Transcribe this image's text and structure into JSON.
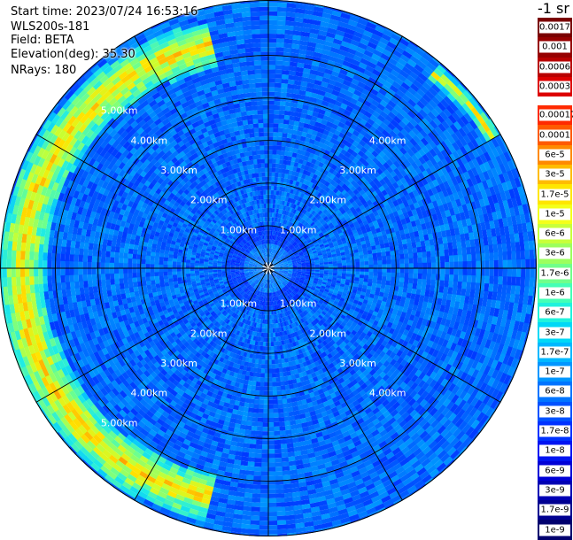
{
  "info": {
    "start_time": "Start time: 2023/07/24 16:53:16",
    "instrument": "WLS200s-181",
    "field": "Field: BETA",
    "elevation": "Elevation(deg): 35.30",
    "nrays": "NRays: 180"
  },
  "colorbar": {
    "unit": "-1 sr",
    "upper_labels": [
      "0.0017",
      "0.001",
      "0.0006",
      "0.0003"
    ],
    "upper_colors": [
      "#7a0000",
      "#960000",
      "#b80000",
      "#dd0000"
    ],
    "lower_labels": [
      "0.00017",
      "0.0001",
      "6e-5",
      "3e-5",
      "1.7e-5",
      "1e-5",
      "6e-6",
      "3e-6",
      "1.7e-6",
      "1e-6",
      "6e-7",
      "3e-7",
      "1.7e-7",
      "1e-7",
      "6e-8",
      "3e-8",
      "1.7e-8",
      "1e-8",
      "6e-9",
      "3e-9",
      "1.7e-9",
      "1e-9"
    ],
    "lower_colors": [
      "#ff2a00",
      "#ff5a00",
      "#ff8a00",
      "#ffbc00",
      "#ffe600",
      "#f4ff1a",
      "#c8ff3a",
      "#9cff5e",
      "#70ff8a",
      "#44ffb6",
      "#20f2dc",
      "#00d8f6",
      "#00b8ff",
      "#0096ff",
      "#0074ff",
      "#0052ff",
      "#0032ff",
      "#0014f2",
      "#0000d6",
      "#0000b4",
      "#000090",
      "#00006e"
    ]
  },
  "chart_data": {
    "type": "heatmap",
    "projection": "polar",
    "range_rings_km": [
      1,
      2,
      3,
      4,
      5
    ],
    "ring_labels": [
      "1.00km",
      "2.00km",
      "3.00km",
      "4.00km",
      "5.00km"
    ],
    "max_range_km": 6.3,
    "radial_lines_deg": [
      0,
      30,
      60,
      90,
      120,
      150,
      180,
      210,
      240,
      270,
      300,
      330
    ],
    "nrays": 180,
    "color_scale": "log",
    "value_range": [
      1e-09,
      0.0017
    ],
    "features": [
      {
        "description": "aerosol layer arc, west side",
        "range_km": [
          5.0,
          6.1
        ],
        "azimuth_deg": [
          195,
          345
        ],
        "approx_value": 1.7e-05
      },
      {
        "description": "aerosol layer arc, north-east edge",
        "range_km": [
          5.8,
          6.2
        ],
        "azimuth_deg": [
          40,
          60
        ],
        "approx_value": 1e-05
      },
      {
        "description": "near-field clearer zone",
        "range_km": [
          0.3,
          1.0
        ],
        "approx_value": 3e-08
      }
    ],
    "background_value": 1e-07
  }
}
